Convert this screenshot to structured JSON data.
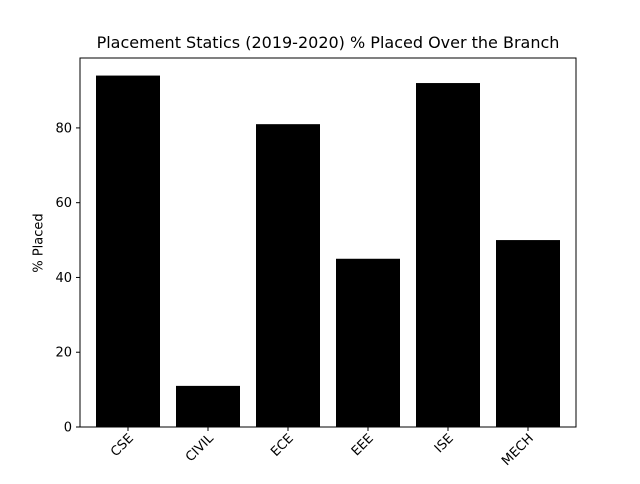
{
  "chart_data": {
    "type": "bar",
    "title": "Placement Statics (2019-2020) % Placed Over the Branch",
    "xlabel": "",
    "ylabel": "% Placed",
    "categories": [
      "CSE",
      "CIVIL",
      "ECE",
      "EEE",
      "ISE",
      "MECH"
    ],
    "values": [
      94,
      11,
      81,
      45,
      92,
      50
    ],
    "ylim": [
      0,
      98.7
    ],
    "yticks": [
      0,
      20,
      40,
      60,
      80
    ],
    "bar_color": "#000000",
    "grid": false,
    "legend": "none",
    "xtick_rotation_deg": 45
  }
}
